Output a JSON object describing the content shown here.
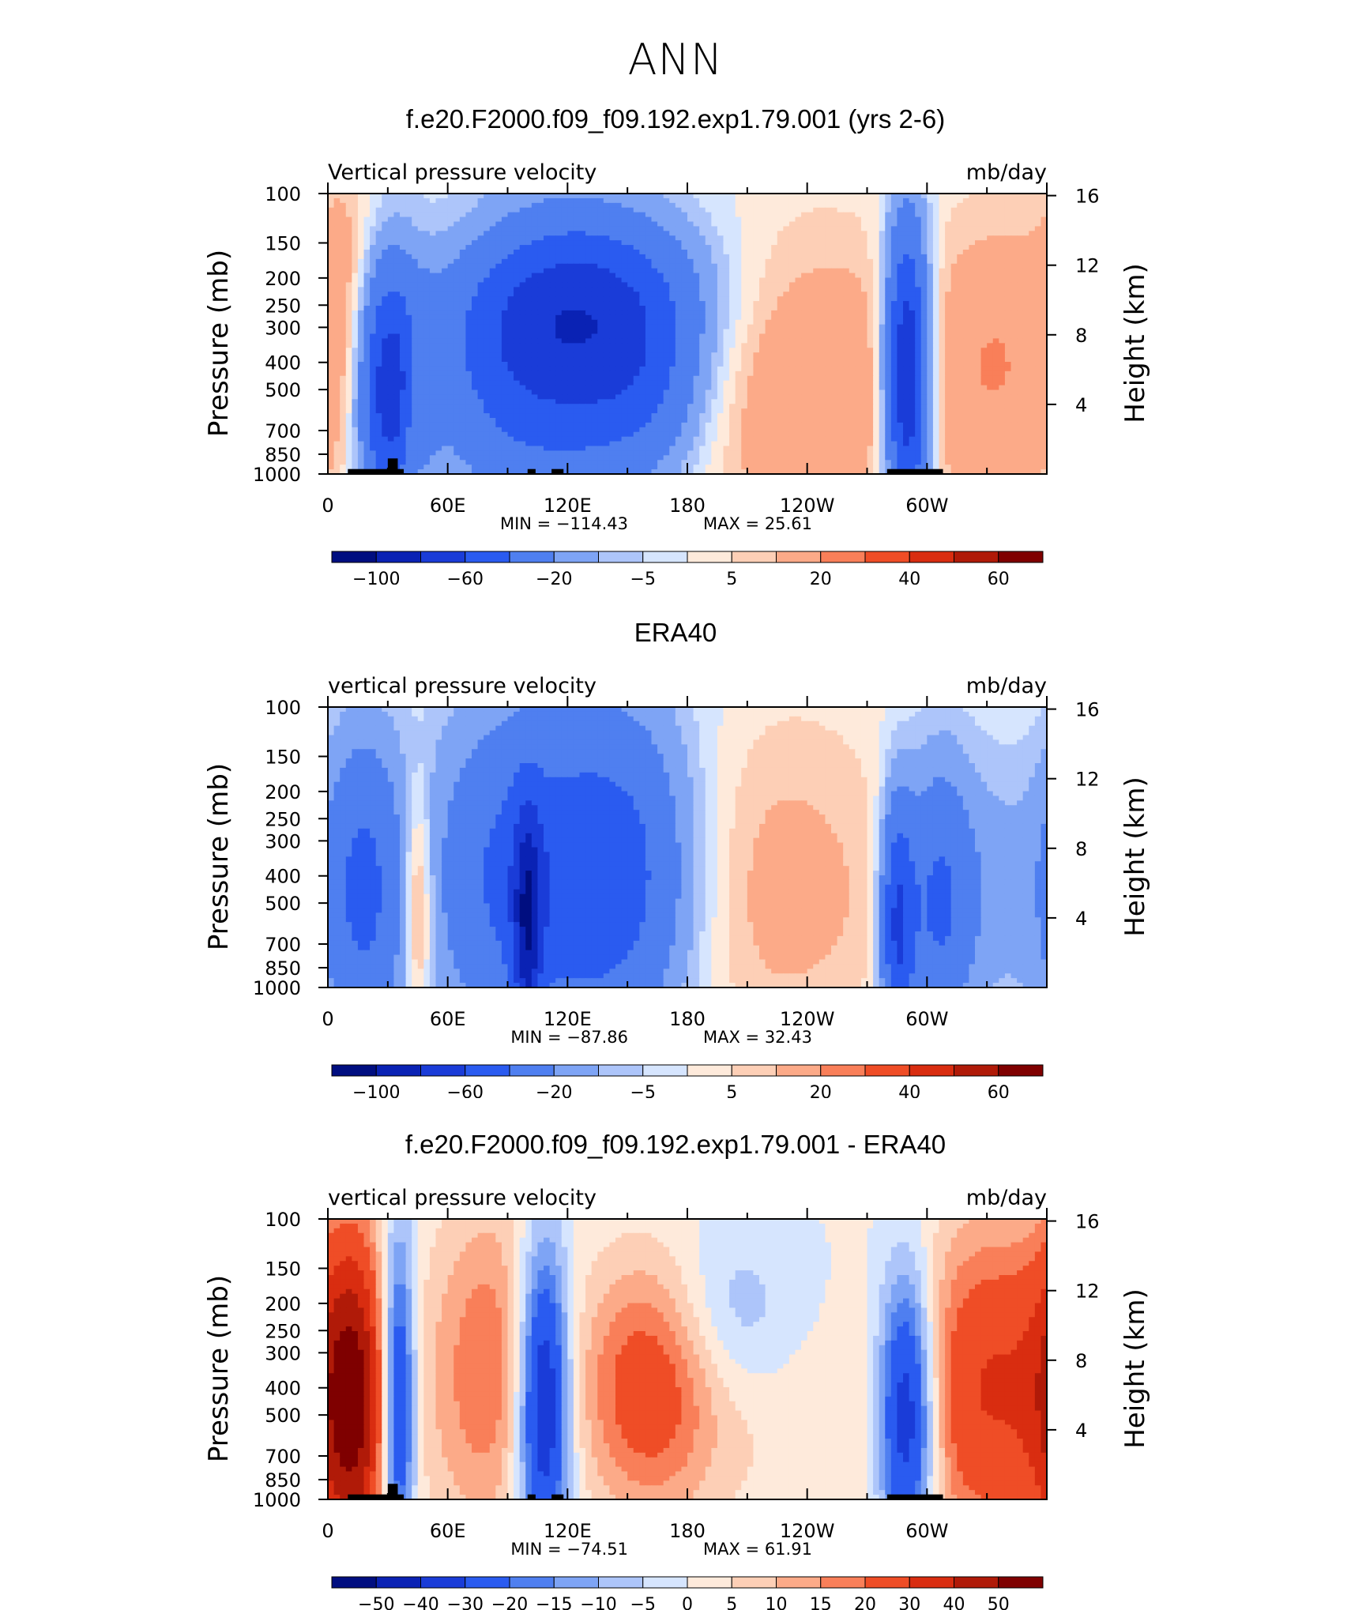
{
  "main_title": "ANN",
  "chart_data": [
    {
      "type": "heatmap",
      "title": "f.e20.F2000.f09_f09.192.exp1.79.001 (yrs 2-6)",
      "left_label": "Vertical pressure velocity",
      "right_label": "mb/day",
      "ylabel": "Pressure (mb)",
      "ylabel_right": "Height (km)",
      "xticklabels": [
        "0",
        "60E",
        "120E",
        "180",
        "120W",
        "60W"
      ],
      "yticklabels": [
        "100",
        "150",
        "200",
        "250",
        "300",
        "400",
        "500",
        "700",
        "850",
        "1000"
      ],
      "heightticklabels": [
        "16",
        "12",
        "8",
        "4"
      ],
      "min_text": "MIN = −114.43",
      "max_text": "MAX = 25.61",
      "min_value": -114.43,
      "max_value": 25.61,
      "colorbar_labels": [
        "−100",
        "−60",
        "−20",
        "−5",
        "5",
        "20",
        "40",
        "60"
      ],
      "colorbar_label_positions": [
        1,
        3,
        5,
        7,
        9,
        11,
        13,
        15
      ],
      "features": [
        {
          "lon": 30,
          "p": 500,
          "w": 12,
          "h": 0.45,
          "v": -70
        },
        {
          "lon": 43,
          "p": 550,
          "w": 4,
          "h": 0.3,
          "v": 15
        },
        {
          "lon": 105,
          "p": 380,
          "w": 38,
          "h": 0.5,
          "v": -55
        },
        {
          "lon": 140,
          "p": 230,
          "w": 40,
          "h": 0.3,
          "v": -35
        },
        {
          "lon": 160,
          "p": 500,
          "w": 25,
          "h": 0.35,
          "v": -30
        },
        {
          "lon": 80,
          "p": 130,
          "w": 30,
          "h": 0.2,
          "v": 6
        },
        {
          "lon": 240,
          "p": 500,
          "w": 45,
          "h": 0.55,
          "v": 22
        },
        {
          "lon": 10,
          "p": 300,
          "w": 10,
          "h": 0.6,
          "v": 15
        },
        {
          "lon": 290,
          "p": 450,
          "w": 8,
          "h": 0.55,
          "v": -90
        },
        {
          "lon": 340,
          "p": 400,
          "w": 25,
          "h": 0.55,
          "v": 18
        }
      ],
      "topography": [
        [
          10,
          38,
          960
        ],
        [
          30,
          35,
          880
        ],
        [
          100,
          104,
          960
        ],
        [
          112,
          118,
          960
        ],
        [
          280,
          308,
          960
        ]
      ]
    },
    {
      "type": "heatmap",
      "title": "ERA40",
      "left_label": "vertical pressure velocity",
      "right_label": "mb/day",
      "ylabel": "Pressure (mb)",
      "ylabel_right": "Height (km)",
      "xticklabels": [
        "0",
        "60E",
        "120E",
        "180",
        "120W",
        "60W"
      ],
      "yticklabels": [
        "100",
        "150",
        "200",
        "250",
        "300",
        "400",
        "500",
        "700",
        "850",
        "1000"
      ],
      "heightticklabels": [
        "16",
        "12",
        "8",
        "4"
      ],
      "min_text": "MIN = −87.86",
      "max_text": "MAX = 32.43",
      "min_value": -87.86,
      "max_value": 32.43,
      "colorbar_labels": [
        "−100",
        "−60",
        "−20",
        "−5",
        "5",
        "20",
        "40",
        "60"
      ],
      "colorbar_label_positions": [
        1,
        3,
        5,
        7,
        9,
        11,
        13,
        15
      ],
      "features": [
        {
          "lon": 18,
          "p": 450,
          "w": 14,
          "h": 0.55,
          "v": -45
        },
        {
          "lon": 45,
          "p": 500,
          "w": 5,
          "h": 0.4,
          "v": 25
        },
        {
          "lon": 90,
          "p": 400,
          "w": 28,
          "h": 0.6,
          "v": -40
        },
        {
          "lon": 145,
          "p": 400,
          "w": 28,
          "h": 0.6,
          "v": -50
        },
        {
          "lon": 100,
          "p": 600,
          "w": 5,
          "h": 0.4,
          "v": -60
        },
        {
          "lon": 230,
          "p": 450,
          "w": 40,
          "h": 0.6,
          "v": 15
        },
        {
          "lon": 285,
          "p": 600,
          "w": 6,
          "h": 0.45,
          "v": -60
        },
        {
          "lon": 305,
          "p": 500,
          "w": 12,
          "h": 0.5,
          "v": -40
        },
        {
          "lon": 330,
          "p": 450,
          "w": 22,
          "h": 0.5,
          "v": -15
        }
      ],
      "topography": []
    },
    {
      "type": "heatmap",
      "title": "f.e20.F2000.f09_f09.192.exp1.79.001 - ERA40",
      "left_label": "vertical pressure velocity",
      "right_label": "mb/day",
      "ylabel": "Pressure (mb)",
      "ylabel_right": "Height (km)",
      "xticklabels": [
        "0",
        "60E",
        "120E",
        "180",
        "120W",
        "60W"
      ],
      "yticklabels": [
        "100",
        "150",
        "200",
        "250",
        "300",
        "400",
        "500",
        "700",
        "850",
        "1000"
      ],
      "heightticklabels": [
        "16",
        "12",
        "8",
        "4"
      ],
      "min_text": "MIN = −74.51",
      "max_text": "MAX = 61.91",
      "min_value": -74.51,
      "max_value": 61.91,
      "colorbar_labels": [
        "−50",
        "−40",
        "−30",
        "−20",
        "−15",
        "−10",
        "−5",
        "0",
        "5",
        "10",
        "15",
        "20",
        "30",
        "40",
        "50"
      ],
      "colorbar_label_positions": [
        1,
        2,
        3,
        4,
        5,
        6,
        7,
        8,
        9,
        10,
        11,
        12,
        13,
        14,
        15
      ],
      "features": [
        {
          "lon": 12,
          "p": 450,
          "w": 12,
          "h": 0.6,
          "v": 45
        },
        {
          "lon": 35,
          "p": 450,
          "w": 6,
          "h": 0.6,
          "v": -40
        },
        {
          "lon": 80,
          "p": 350,
          "w": 20,
          "h": 0.6,
          "v": 20
        },
        {
          "lon": 108,
          "p": 450,
          "w": 9,
          "h": 0.55,
          "v": -45
        },
        {
          "lon": 160,
          "p": 400,
          "w": 25,
          "h": 0.45,
          "v": 25
        },
        {
          "lon": 200,
          "p": 220,
          "w": 22,
          "h": 0.3,
          "v": -10
        },
        {
          "lon": 240,
          "p": 600,
          "w": 30,
          "h": 0.4,
          "v": 6
        },
        {
          "lon": 290,
          "p": 500,
          "w": 10,
          "h": 0.5,
          "v": -45
        },
        {
          "lon": 335,
          "p": 400,
          "w": 30,
          "h": 0.6,
          "v": 30
        }
      ],
      "topography": [
        [
          10,
          38,
          960
        ],
        [
          30,
          35,
          880
        ],
        [
          100,
          104,
          960
        ],
        [
          112,
          118,
          960
        ],
        [
          280,
          308,
          960
        ]
      ]
    }
  ],
  "colors": [
    "#000e80",
    "#0a22b4",
    "#1a3cd8",
    "#2a5bf0",
    "#4f7ff0",
    "#7ea4f5",
    "#adc5fa",
    "#d6e5fe",
    "#feeadb",
    "#fdcfb6",
    "#fcaa88",
    "#f97f59",
    "#ef4d26",
    "#d92d10",
    "#b01a08",
    "#7f0000"
  ]
}
